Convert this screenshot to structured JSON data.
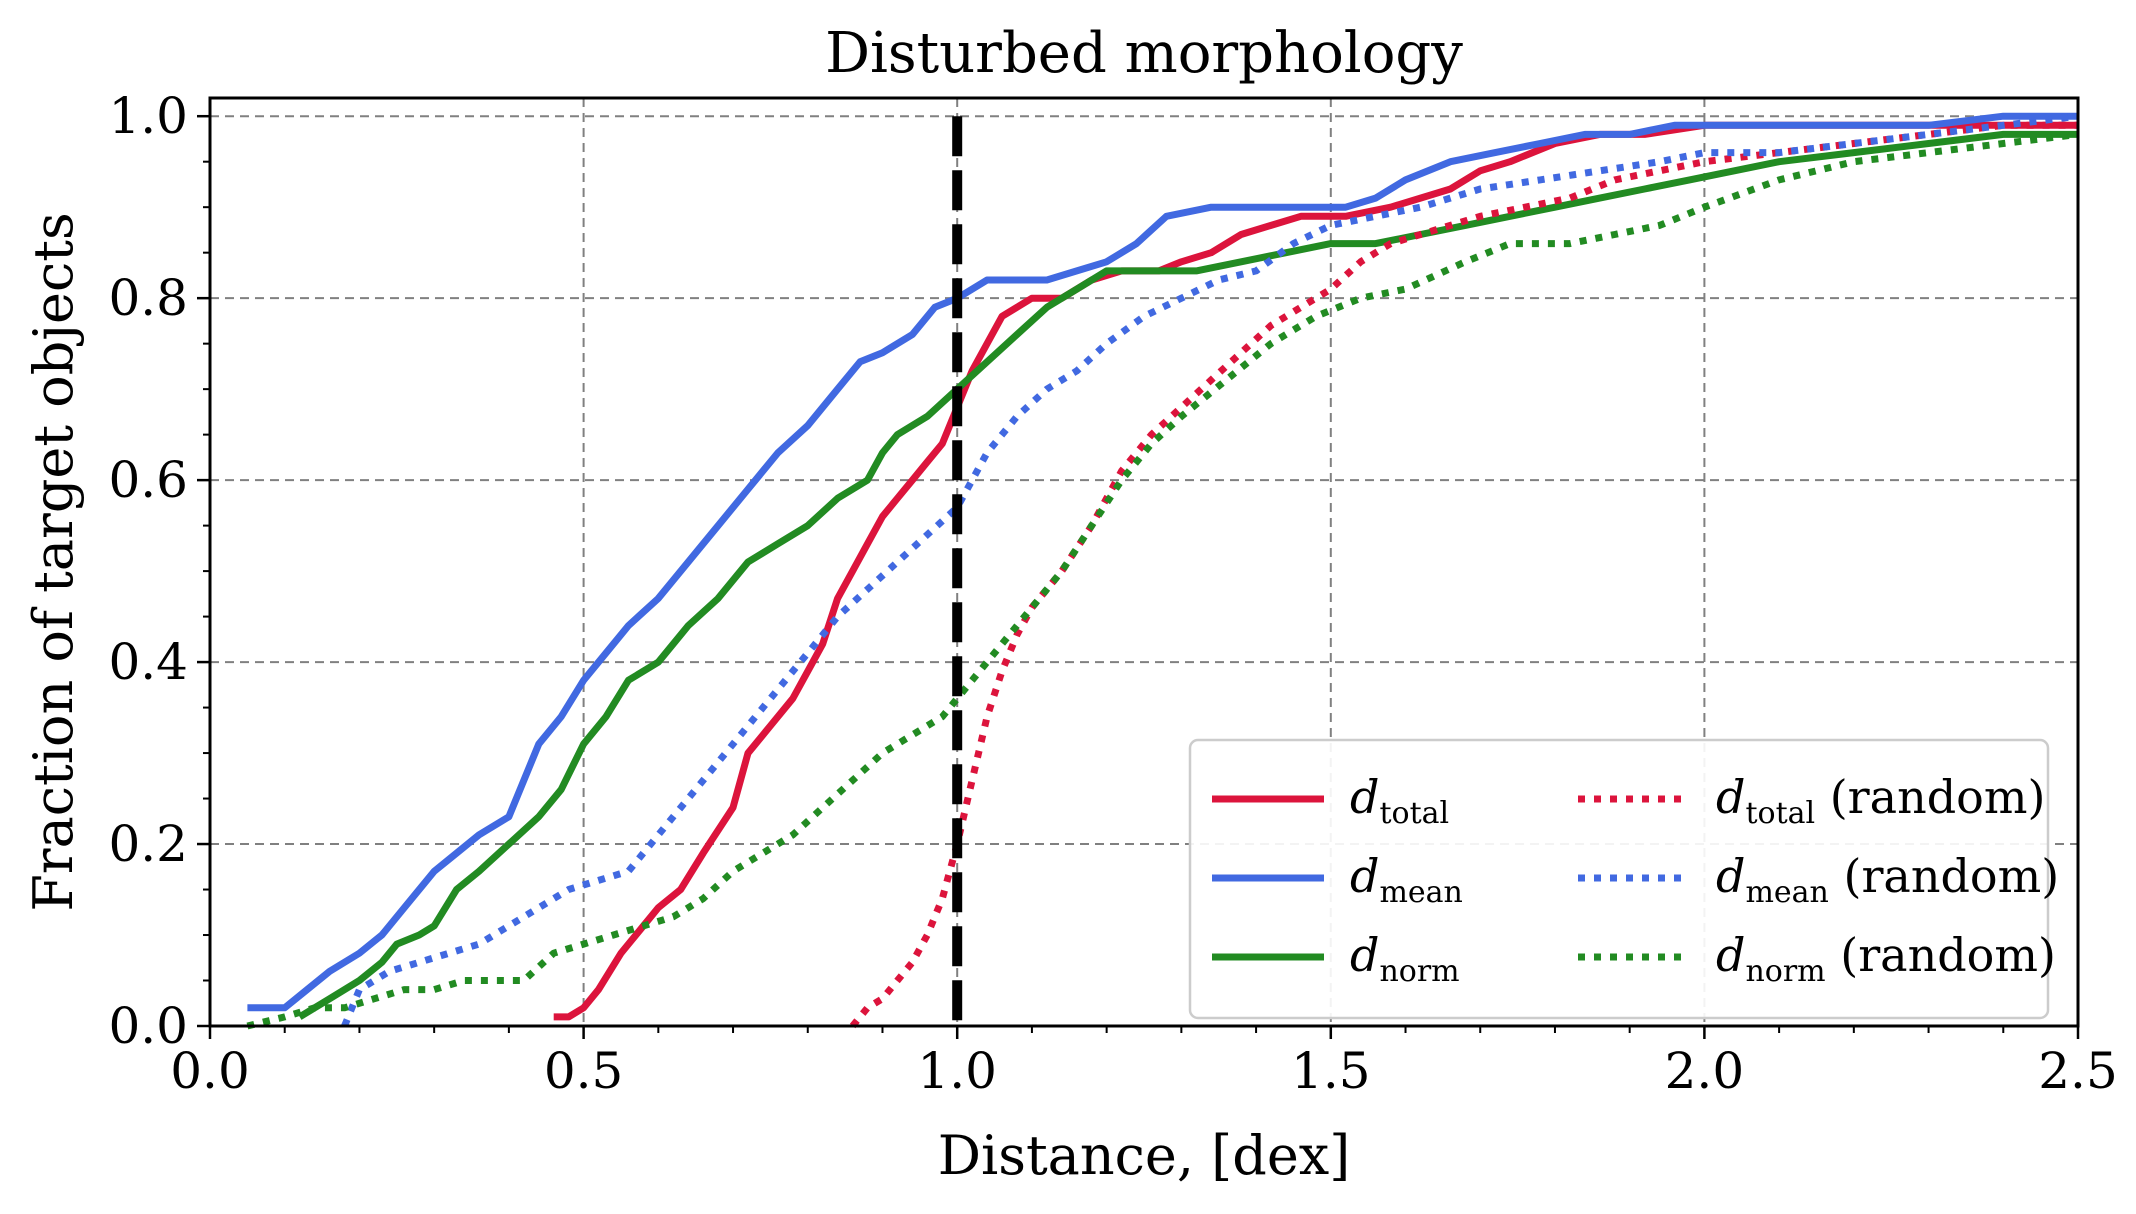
{
  "chart_data": {
    "type": "line",
    "title": "Disturbed morphology",
    "xlabel": "Distance, [dex]",
    "ylabel": "Fraction of target objects",
    "xlim": [
      0.0,
      2.5
    ],
    "ylim": [
      0.0,
      1.02
    ],
    "xticks": [
      "0.0",
      "0.5",
      "1.0",
      "1.5",
      "2.0",
      "2.5"
    ],
    "yticks": [
      "0.0",
      "0.2",
      "0.4",
      "0.6",
      "0.8",
      "1.0"
    ],
    "grid": true,
    "legend_position": "lower-right",
    "reference_line": {
      "x": 1.0,
      "style": "dashed",
      "color": "#000000"
    },
    "series": [
      {
        "name": "d_total",
        "label_main": "d",
        "label_sub": "total",
        "label_suffix": "",
        "color": "#dc143c",
        "style": "solid",
        "x": [
          0.46,
          0.48,
          0.5,
          0.52,
          0.55,
          0.58,
          0.6,
          0.63,
          0.66,
          0.7,
          0.72,
          0.73,
          0.75,
          0.78,
          0.8,
          0.82,
          0.84,
          0.86,
          0.88,
          0.9,
          0.92,
          0.94,
          0.96,
          0.98,
          1.0,
          1.02,
          1.04,
          1.06,
          1.08,
          1.1,
          1.14,
          1.18,
          1.22,
          1.27,
          1.3,
          1.34,
          1.38,
          1.42,
          1.46,
          1.52,
          1.58,
          1.62,
          1.66,
          1.7,
          1.74,
          1.8,
          1.86,
          1.92,
          2.0,
          2.1,
          2.2,
          2.3,
          2.4,
          2.5
        ],
        "y": [
          0.01,
          0.01,
          0.02,
          0.04,
          0.08,
          0.11,
          0.13,
          0.15,
          0.19,
          0.24,
          0.3,
          0.31,
          0.33,
          0.36,
          0.39,
          0.42,
          0.47,
          0.5,
          0.53,
          0.56,
          0.58,
          0.6,
          0.62,
          0.64,
          0.68,
          0.72,
          0.75,
          0.78,
          0.79,
          0.8,
          0.8,
          0.82,
          0.83,
          0.83,
          0.84,
          0.85,
          0.87,
          0.88,
          0.89,
          0.89,
          0.9,
          0.91,
          0.92,
          0.94,
          0.95,
          0.97,
          0.98,
          0.98,
          0.99,
          0.99,
          0.99,
          0.99,
          0.99,
          0.99
        ]
      },
      {
        "name": "d_mean",
        "label_main": "d",
        "label_sub": "mean",
        "label_suffix": "",
        "color": "#4169e1",
        "style": "solid",
        "x": [
          0.05,
          0.1,
          0.13,
          0.16,
          0.2,
          0.23,
          0.26,
          0.3,
          0.33,
          0.36,
          0.4,
          0.42,
          0.44,
          0.47,
          0.5,
          0.53,
          0.56,
          0.6,
          0.64,
          0.68,
          0.72,
          0.76,
          0.8,
          0.84,
          0.87,
          0.9,
          0.94,
          0.97,
          1.0,
          1.04,
          1.08,
          1.12,
          1.16,
          1.2,
          1.24,
          1.28,
          1.34,
          1.4,
          1.46,
          1.52,
          1.56,
          1.6,
          1.66,
          1.72,
          1.78,
          1.84,
          1.9,
          1.96,
          2.0,
          2.1,
          2.2,
          2.3,
          2.4,
          2.5
        ],
        "y": [
          0.02,
          0.02,
          0.04,
          0.06,
          0.08,
          0.1,
          0.13,
          0.17,
          0.19,
          0.21,
          0.23,
          0.27,
          0.31,
          0.34,
          0.38,
          0.41,
          0.44,
          0.47,
          0.51,
          0.55,
          0.59,
          0.63,
          0.66,
          0.7,
          0.73,
          0.74,
          0.76,
          0.79,
          0.8,
          0.82,
          0.82,
          0.82,
          0.83,
          0.84,
          0.86,
          0.89,
          0.9,
          0.9,
          0.9,
          0.9,
          0.91,
          0.93,
          0.95,
          0.96,
          0.97,
          0.98,
          0.98,
          0.99,
          0.99,
          0.99,
          0.99,
          0.99,
          1.0,
          1.0
        ]
      },
      {
        "name": "d_norm",
        "label_main": "d",
        "label_sub": "norm",
        "label_suffix": "",
        "color": "#228b22",
        "style": "solid",
        "x": [
          0.12,
          0.16,
          0.18,
          0.2,
          0.23,
          0.25,
          0.28,
          0.3,
          0.33,
          0.36,
          0.4,
          0.44,
          0.47,
          0.5,
          0.53,
          0.56,
          0.6,
          0.64,
          0.68,
          0.72,
          0.76,
          0.8,
          0.84,
          0.88,
          0.9,
          0.92,
          0.96,
          1.0,
          1.04,
          1.08,
          1.12,
          1.16,
          1.2,
          1.26,
          1.32,
          1.38,
          1.44,
          1.5,
          1.56,
          1.62,
          1.68,
          1.74,
          1.8,
          1.86,
          1.92,
          1.98,
          2.04,
          2.1,
          2.2,
          2.3,
          2.4,
          2.5
        ],
        "y": [
          0.01,
          0.03,
          0.04,
          0.05,
          0.07,
          0.09,
          0.1,
          0.11,
          0.15,
          0.17,
          0.2,
          0.23,
          0.26,
          0.31,
          0.34,
          0.38,
          0.4,
          0.44,
          0.47,
          0.51,
          0.53,
          0.55,
          0.58,
          0.6,
          0.63,
          0.65,
          0.67,
          0.7,
          0.73,
          0.76,
          0.79,
          0.81,
          0.83,
          0.83,
          0.83,
          0.84,
          0.85,
          0.86,
          0.86,
          0.87,
          0.88,
          0.89,
          0.9,
          0.91,
          0.92,
          0.93,
          0.94,
          0.95,
          0.96,
          0.97,
          0.98,
          0.98
        ]
      },
      {
        "name": "d_total_random",
        "label_main": "d",
        "label_sub": "total",
        "label_suffix": " (random)",
        "color": "#dc143c",
        "style": "dotted",
        "x": [
          0.86,
          0.88,
          0.9,
          0.92,
          0.94,
          0.96,
          0.98,
          1.0,
          1.02,
          1.04,
          1.06,
          1.08,
          1.1,
          1.14,
          1.18,
          1.22,
          1.26,
          1.3,
          1.34,
          1.38,
          1.42,
          1.46,
          1.5,
          1.54,
          1.58,
          1.62,
          1.66,
          1.7,
          1.76,
          1.82,
          1.88,
          1.94,
          2.0,
          2.1,
          2.2,
          2.3,
          2.4,
          2.5
        ],
        "y": [
          0.0,
          0.02,
          0.03,
          0.05,
          0.07,
          0.1,
          0.14,
          0.2,
          0.27,
          0.34,
          0.39,
          0.43,
          0.46,
          0.5,
          0.55,
          0.61,
          0.65,
          0.68,
          0.71,
          0.74,
          0.77,
          0.79,
          0.81,
          0.84,
          0.86,
          0.87,
          0.88,
          0.89,
          0.9,
          0.91,
          0.93,
          0.94,
          0.95,
          0.96,
          0.97,
          0.98,
          0.99,
          0.99
        ]
      },
      {
        "name": "d_mean_random",
        "label_main": "d",
        "label_sub": "mean",
        "label_suffix": " (random)",
        "color": "#4169e1",
        "style": "dotted",
        "x": [
          0.18,
          0.2,
          0.24,
          0.28,
          0.32,
          0.36,
          0.4,
          0.44,
          0.48,
          0.52,
          0.56,
          0.6,
          0.64,
          0.68,
          0.72,
          0.76,
          0.8,
          0.84,
          0.88,
          0.92,
          0.96,
          1.0,
          1.04,
          1.08,
          1.12,
          1.16,
          1.2,
          1.25,
          1.3,
          1.35,
          1.4,
          1.45,
          1.5,
          1.56,
          1.62,
          1.7,
          1.78,
          1.86,
          1.94,
          2.0,
          2.1,
          2.2,
          2.3,
          2.4,
          2.5
        ],
        "y": [
          0.0,
          0.04,
          0.06,
          0.07,
          0.08,
          0.09,
          0.11,
          0.13,
          0.15,
          0.16,
          0.17,
          0.21,
          0.25,
          0.29,
          0.33,
          0.37,
          0.41,
          0.45,
          0.48,
          0.51,
          0.54,
          0.57,
          0.63,
          0.67,
          0.7,
          0.72,
          0.75,
          0.78,
          0.8,
          0.82,
          0.83,
          0.86,
          0.88,
          0.89,
          0.9,
          0.92,
          0.93,
          0.94,
          0.95,
          0.96,
          0.96,
          0.97,
          0.98,
          0.99,
          1.0
        ]
      },
      {
        "name": "d_norm_random",
        "label_main": "d",
        "label_sub": "norm",
        "label_suffix": " (random)",
        "color": "#228b22",
        "style": "dotted",
        "x": [
          0.05,
          0.1,
          0.14,
          0.18,
          0.22,
          0.26,
          0.3,
          0.34,
          0.38,
          0.42,
          0.46,
          0.5,
          0.54,
          0.58,
          0.62,
          0.66,
          0.7,
          0.74,
          0.78,
          0.82,
          0.86,
          0.9,
          0.94,
          0.98,
          1.02,
          1.06,
          1.1,
          1.14,
          1.18,
          1.22,
          1.26,
          1.3,
          1.36,
          1.42,
          1.48,
          1.54,
          1.6,
          1.68,
          1.74,
          1.82,
          1.88,
          1.94,
          2.0,
          2.1,
          2.2,
          2.3,
          2.4,
          2.5
        ],
        "y": [
          0.0,
          0.01,
          0.02,
          0.02,
          0.03,
          0.04,
          0.04,
          0.05,
          0.05,
          0.05,
          0.08,
          0.09,
          0.1,
          0.11,
          0.12,
          0.14,
          0.17,
          0.19,
          0.21,
          0.24,
          0.27,
          0.3,
          0.32,
          0.34,
          0.38,
          0.42,
          0.46,
          0.5,
          0.55,
          0.6,
          0.64,
          0.67,
          0.71,
          0.75,
          0.78,
          0.8,
          0.81,
          0.84,
          0.86,
          0.86,
          0.87,
          0.88,
          0.9,
          0.93,
          0.95,
          0.96,
          0.97,
          0.98
        ]
      }
    ]
  }
}
